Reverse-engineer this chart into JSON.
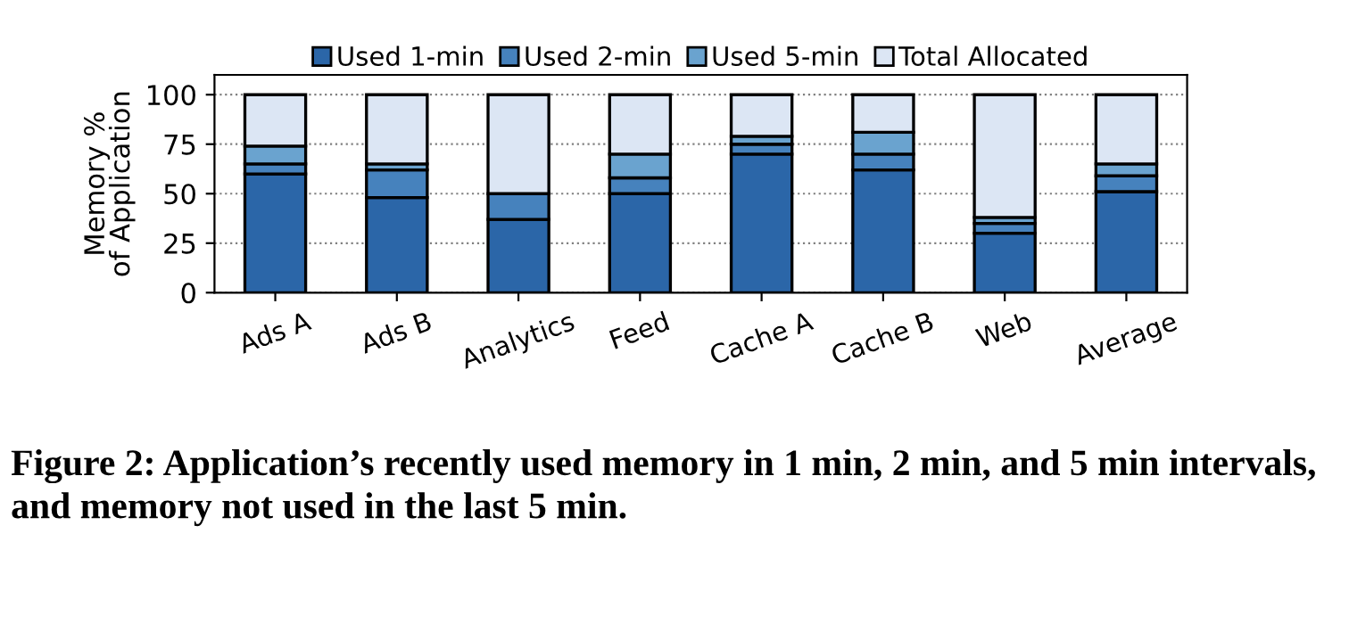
{
  "chart_data": {
    "type": "bar",
    "stacked": true,
    "ylabel": "Memory %\nof Application",
    "categories": [
      "Ads A",
      "Ads B",
      "Analytics",
      "Feed",
      "Cache A",
      "Cache B",
      "Web",
      "Average"
    ],
    "series": [
      {
        "name": "Used 1-min",
        "color": "#2b66a8",
        "values": [
          60,
          48,
          37,
          50,
          70,
          62,
          30,
          51
        ]
      },
      {
        "name": "Used 2-min",
        "color": "#4682bd",
        "values": [
          5,
          14,
          13,
          8,
          5,
          8,
          5,
          8
        ]
      },
      {
        "name": "Used 5-min",
        "color": "#6aa3cf",
        "values": [
          9,
          3,
          0,
          12,
          4,
          11,
          3,
          6
        ]
      },
      {
        "name": "Total Allocated",
        "color": "#dce6f4",
        "values": [
          26,
          35,
          50,
          30,
          21,
          19,
          62,
          35
        ]
      }
    ],
    "ylim": [
      0,
      110
    ],
    "yticks": [
      0,
      25,
      50,
      75,
      100
    ],
    "grid": "y",
    "legend": "top",
    "annotations": [
      "Figure 2: Application’s recently used memory in 1 min, 2 min, and 5 min intervals, and memory not used in the last 5 min."
    ]
  }
}
